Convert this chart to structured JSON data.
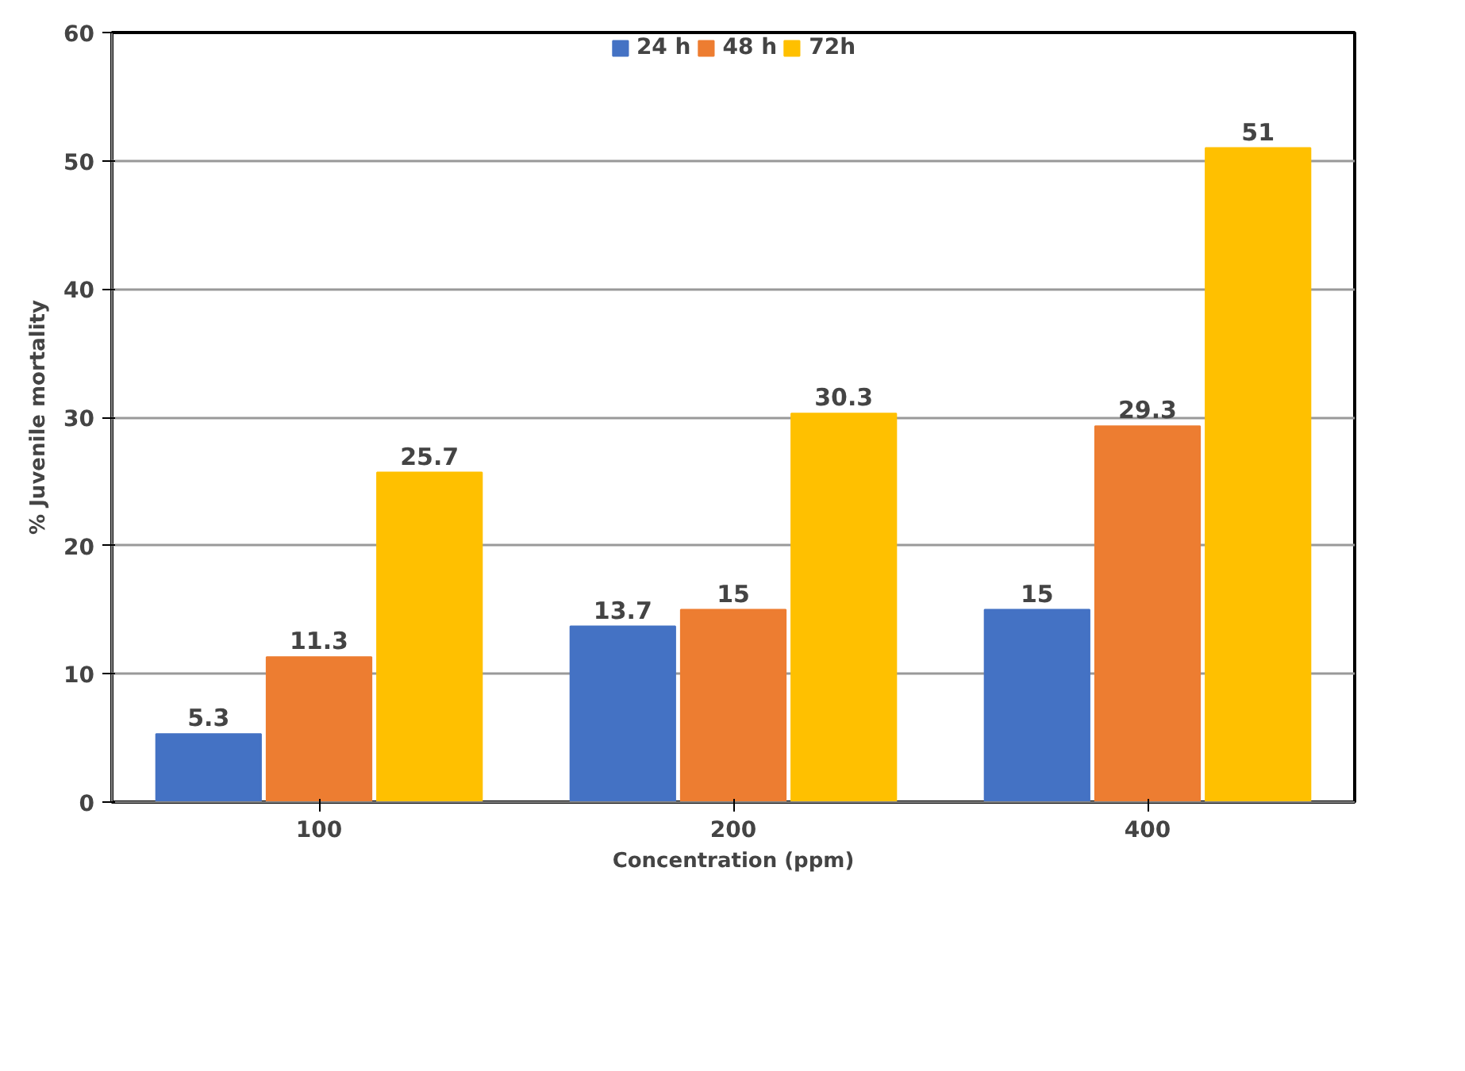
{
  "chart_data": {
    "type": "bar",
    "xlabel": "Concentration (ppm)",
    "ylabel": "% Juvenile mortality",
    "categories": [
      "100",
      "200",
      "400"
    ],
    "series": [
      {
        "name": "24 h",
        "color": "#4472c4",
        "values": [
          5.3,
          13.7,
          15
        ]
      },
      {
        "name": "48 h",
        "color": "#ed7d31",
        "values": [
          11.3,
          15,
          29.3
        ]
      },
      {
        "name": "72h",
        "color": "#ffc000",
        "values": [
          25.7,
          30.3,
          51
        ]
      }
    ],
    "ylim": [
      0,
      60
    ],
    "yticks": [
      0,
      10,
      20,
      30,
      40,
      50,
      60
    ],
    "grid": "y",
    "legend": "top",
    "data_labels": true
  }
}
